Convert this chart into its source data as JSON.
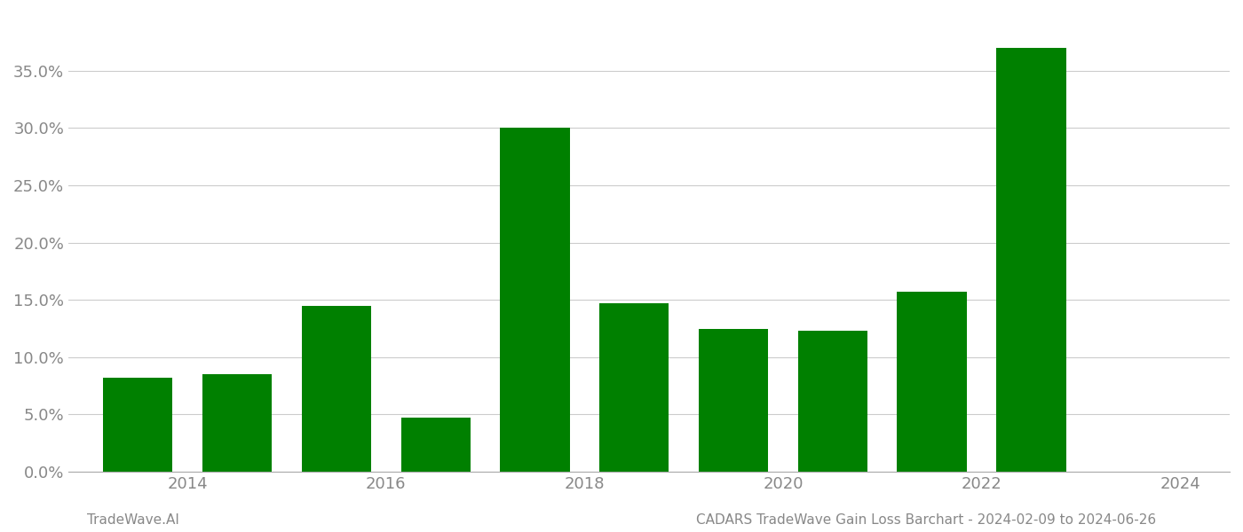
{
  "bar_centers": [
    2013.5,
    2014.5,
    2015.5,
    2016.5,
    2017.5,
    2018.5,
    2019.5,
    2020.5,
    2021.5,
    2022.5
  ],
  "values": [
    0.082,
    0.085,
    0.145,
    0.047,
    0.3,
    0.147,
    0.125,
    0.123,
    0.157,
    0.37
  ],
  "bar_color": "#008000",
  "bar_width": 0.7,
  "xlim": [
    2012.8,
    2024.5
  ],
  "ylim": [
    0.0,
    0.4
  ],
  "yticks": [
    0.0,
    0.05,
    0.1,
    0.15,
    0.2,
    0.25,
    0.3,
    0.35
  ],
  "xticks": [
    2014,
    2016,
    2018,
    2020,
    2022,
    2024
  ],
  "grid_color": "#cccccc",
  "grid_linewidth": 0.8,
  "background_color": "#ffffff",
  "footer_left": "TradeWave.AI",
  "footer_right": "CADARS TradeWave Gain Loss Barchart - 2024-02-09 to 2024-06-26",
  "footer_fontsize": 11,
  "tick_fontsize": 13,
  "tick_color": "#888888"
}
